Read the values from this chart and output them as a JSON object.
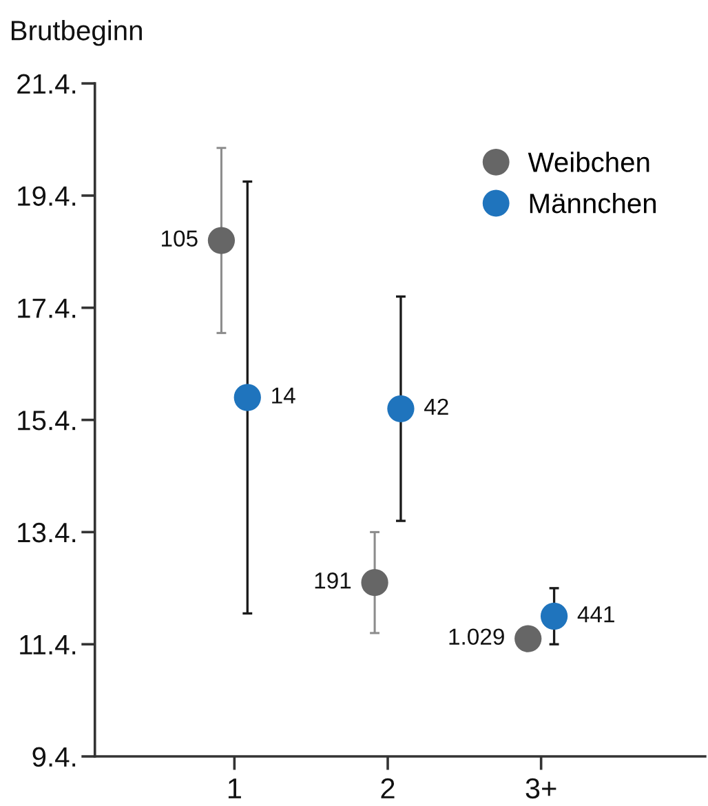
{
  "chart_data": {
    "type": "scatter",
    "ylabel": "Brutbeginn",
    "categories": [
      "1",
      "2",
      "3+"
    ],
    "series": [
      {
        "name": "Weibchen",
        "color": "#666666",
        "values": [
          18.6,
          12.5,
          11.5
        ],
        "errors": [
          1.65,
          0.9,
          null
        ]
      },
      {
        "name": "Männchen",
        "color": "#1f74bd",
        "values": [
          15.8,
          15.6,
          11.9
        ],
        "errors": [
          3.85,
          2.0,
          0.5
        ]
      }
    ],
    "annotations": [
      {
        "text": "105",
        "x": "1",
        "y": 18.6
      },
      {
        "text": "191",
        "x": "2",
        "y": 12.5
      },
      {
        "text": "1.029",
        "x": "3+",
        "y": 11.5
      },
      {
        "text": "14",
        "x": "1",
        "y": 15.8
      },
      {
        "text": "42",
        "x": "2",
        "y": 15.6
      },
      {
        "text": "441",
        "x": "3+",
        "y": 11.9
      }
    ],
    "ylim": [
      9.4,
      21.4
    ],
    "yticks": [
      {
        "value": 9.4,
        "label": "9.4."
      },
      {
        "value": 11.4,
        "label": "11.4."
      },
      {
        "value": 13.4,
        "label": "13.4."
      },
      {
        "value": 15.4,
        "label": "15.4."
      },
      {
        "value": 17.4,
        "label": "17.4."
      },
      {
        "value": 19.4,
        "label": "19.4."
      },
      {
        "value": 21.4,
        "label": "21.4."
      }
    ],
    "legend": "top right",
    "marker": "circle"
  }
}
